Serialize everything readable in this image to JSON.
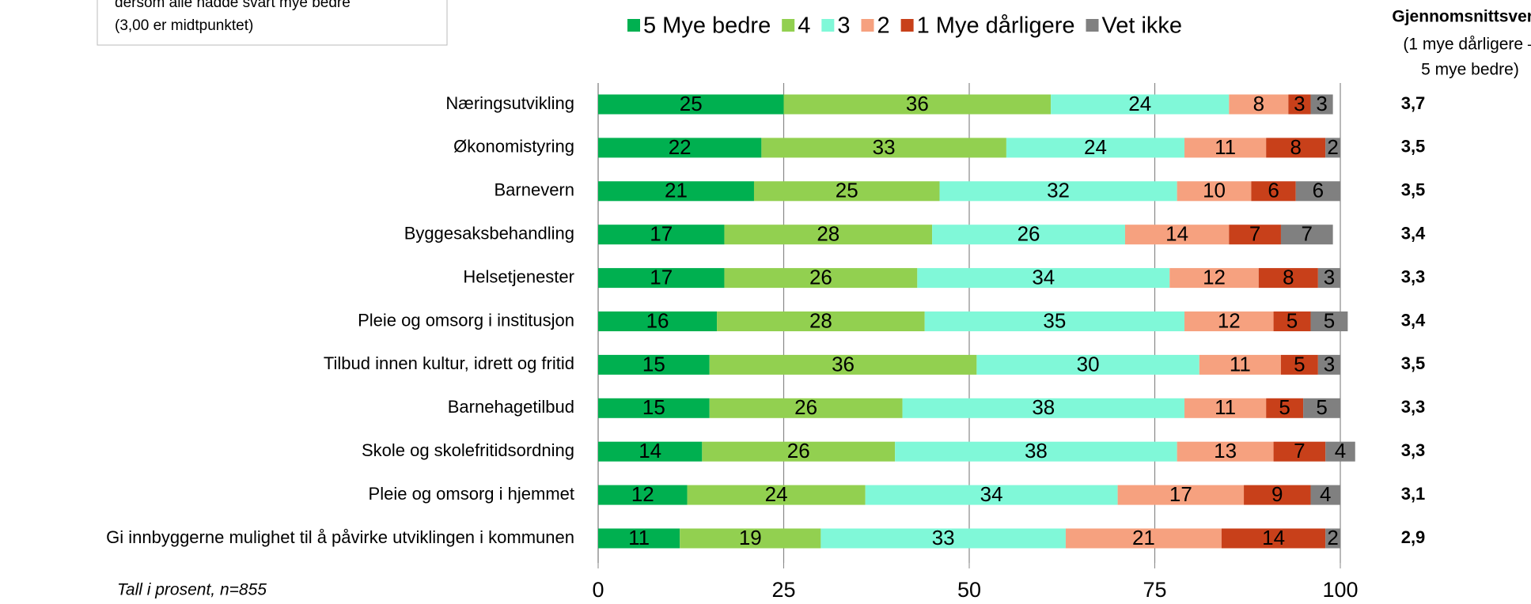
{
  "chart_data": {
    "type": "stacked_barh",
    "note_lines": [
      "dersom alle hadde svart mye bedre",
      "(3,00 er midtpunktet)"
    ],
    "footnote": "Tall i prosent, n=855",
    "average_title": "Gjennomsnittsverdi",
    "average_subtitle_lines": [
      "(1 mye dårligere –",
      "5 mye bedre)"
    ],
    "categories": [
      "Næringsutvikling",
      "Økonomistyring",
      "Barnevern",
      "Byggesaksbehandling",
      "Helsetjenester",
      "Pleie og omsorg i institusjon",
      "Tilbud innen kultur, idrett og fritid",
      "Barnehagetilbud",
      "Skole og skolefritidsordning",
      "Pleie og omsorg i hjemmet",
      "Gi innbyggerne mulighet til å påvirke utviklingen i kommunen"
    ],
    "series": [
      {
        "name": "5 Mye bedre",
        "color": "#00b050",
        "values": [
          25,
          22,
          21,
          17,
          17,
          16,
          15,
          15,
          14,
          12,
          11
        ]
      },
      {
        "name": "4",
        "color": "#92d050",
        "values": [
          36,
          33,
          25,
          28,
          26,
          28,
          36,
          26,
          26,
          24,
          19
        ]
      },
      {
        "name": "3",
        "color": "#80f8d8",
        "values": [
          24,
          24,
          32,
          26,
          34,
          35,
          30,
          38,
          38,
          34,
          33
        ]
      },
      {
        "name": "2",
        "color": "#f6a17f",
        "values": [
          8,
          11,
          10,
          14,
          12,
          12,
          11,
          11,
          13,
          17,
          21
        ]
      },
      {
        "name": "1 Mye dårligere",
        "color": "#c8401a",
        "values": [
          3,
          8,
          6,
          7,
          8,
          5,
          5,
          5,
          7,
          9,
          14
        ]
      },
      {
        "name": "Vet ikke",
        "color": "#808080",
        "values": [
          3,
          2,
          6,
          7,
          3,
          5,
          3,
          5,
          4,
          4,
          2
        ]
      }
    ],
    "averages": [
      "3,7",
      "3,5",
      "3,5",
      "3,4",
      "3,3",
      "3,4",
      "3,5",
      "3,3",
      "3,3",
      "3,1",
      "2,9"
    ],
    "xlim": [
      0,
      100
    ],
    "xticks": [
      0,
      25,
      50,
      75,
      100
    ],
    "grid": true
  }
}
